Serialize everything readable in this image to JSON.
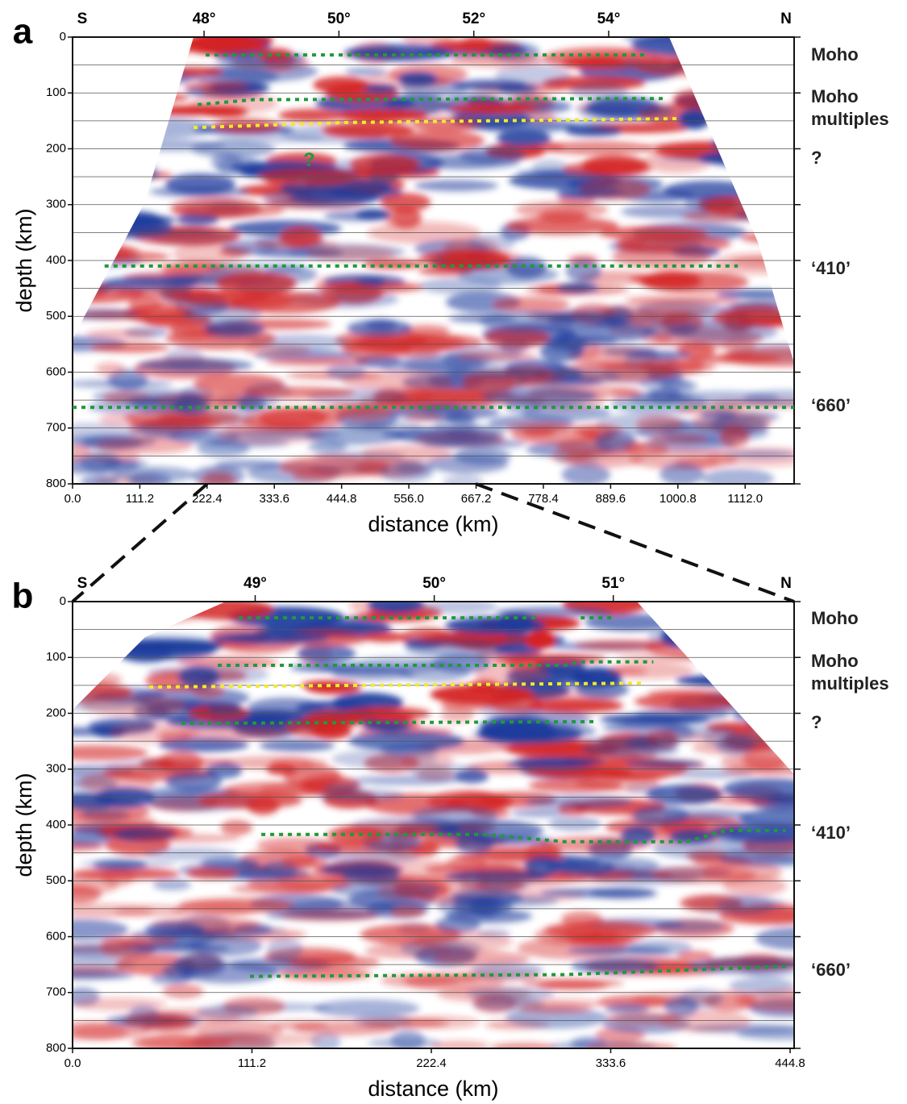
{
  "chart_data": [
    {
      "type": "section",
      "panel": "a",
      "xlabel": "distance (km)",
      "ylabel": "depth (km)",
      "xlim": [
        0,
        1193
      ],
      "xticks": [
        {
          "value": 0,
          "label": "0.0"
        },
        111.2,
        222.4,
        333.6,
        444.8,
        {
          "value": 556,
          "label": "556.0"
        },
        667.2,
        778.4,
        889.6,
        1000.8,
        {
          "value": 1112,
          "label": "1112.0"
        }
      ],
      "x2lim": [
        46.05,
        56.75
      ],
      "x2ticks": [
        {
          "value": 48,
          "label": "48°"
        },
        {
          "value": 50,
          "label": "50°"
        },
        {
          "value": 52,
          "label": "52°"
        },
        {
          "value": 54,
          "label": "54°"
        }
      ],
      "x2_end_labels": [
        "S",
        "N"
      ],
      "ylim": [
        0,
        800
      ],
      "y_inverted": true,
      "yticks": [
        0,
        100,
        200,
        300,
        400,
        500,
        600,
        700,
        800
      ],
      "y_gridlines": [
        50,
        100,
        150,
        200,
        250,
        300,
        350,
        400,
        450,
        500,
        550,
        600,
        650,
        700,
        750
      ],
      "annotations": [
        {
          "text": "Moho",
          "depth": 32
        },
        {
          "text": "Moho multiples",
          "depth": 127
        },
        {
          "text": "?",
          "depth": 217
        },
        {
          "text": "‘410’",
          "depth": 414
        },
        {
          "text": "‘660’",
          "depth": 660
        }
      ],
      "inner_labels": [
        {
          "text": "?",
          "x": 391,
          "depth": 222,
          "color": "#1f9a3a"
        }
      ],
      "lines": [
        {
          "color": "#1f9a3a",
          "x": [
            220,
            953
          ],
          "y": [
            32,
            32
          ]
        },
        {
          "color": "#1f9a3a",
          "x": [
            207,
            300,
            980
          ],
          "y": [
            121,
            112,
            110
          ]
        },
        {
          "color": "#f2ea2a",
          "x": [
            200,
            450,
            1000
          ],
          "y": [
            162,
            153,
            146
          ]
        },
        {
          "color": "#1f9a3a",
          "x": [
            53,
            1100
          ],
          "y": [
            410,
            410
          ]
        },
        {
          "color": "#1f9a3a",
          "x": [
            0,
            1193
          ],
          "y": [
            663,
            663
          ]
        }
      ]
    },
    {
      "type": "section",
      "panel": "b",
      "xlabel": "distance (km)",
      "ylabel": "depth (km)",
      "xlim": [
        0,
        447.3
      ],
      "xticks": [
        {
          "value": 0,
          "label": "0.0"
        },
        111.2,
        222.4,
        333.6,
        444.8
      ],
      "x2lim": [
        47.98,
        52.01
      ],
      "x2ticks": [
        {
          "value": 49,
          "label": "49°"
        },
        {
          "value": 50,
          "label": "50°"
        },
        {
          "value": 51,
          "label": "51°"
        }
      ],
      "x2_end_labels": [
        "S",
        "N"
      ],
      "ylim": [
        0,
        800
      ],
      "y_inverted": true,
      "yticks": [
        0,
        100,
        200,
        300,
        400,
        500,
        600,
        700,
        800
      ],
      "y_gridlines": [
        50,
        100,
        150,
        200,
        250,
        300,
        350,
        400,
        450,
        500,
        550,
        600,
        650,
        700,
        750
      ],
      "annotations": [
        {
          "text": "Moho",
          "depth": 30
        },
        {
          "text": "Moho multiples",
          "depth": 127
        },
        {
          "text": "?",
          "depth": 217
        },
        {
          "text": "‘410’",
          "depth": 414
        },
        {
          "text": "‘660’",
          "depth": 660
        }
      ],
      "lines": [
        {
          "color": "#1f9a3a",
          "x": [
            103,
            287
          ],
          "y": [
            29,
            29
          ]
        },
        {
          "color": "#1f9a3a",
          "x": [
            315,
            337
          ],
          "y": [
            29,
            29
          ]
        },
        {
          "color": "#1f9a3a",
          "x": [
            90,
            305,
            315,
            360
          ],
          "y": [
            114,
            114,
            108,
            108
          ]
        },
        {
          "color": "#f2ea2a",
          "x": [
            47.5,
            355
          ],
          "y": [
            153,
            146
          ]
        },
        {
          "color": "#1f9a3a",
          "x": [
            67.5,
            325
          ],
          "y": [
            218,
            215
          ]
        },
        {
          "color": "#1f9a3a",
          "x": [
            117,
            255,
            305,
            380,
            405,
            442
          ],
          "y": [
            417,
            417,
            430,
            430,
            410,
            410
          ]
        },
        {
          "color": "#1f9a3a",
          "x": [
            110,
            305,
            442
          ],
          "y": [
            671,
            668,
            653
          ]
        }
      ]
    }
  ]
}
